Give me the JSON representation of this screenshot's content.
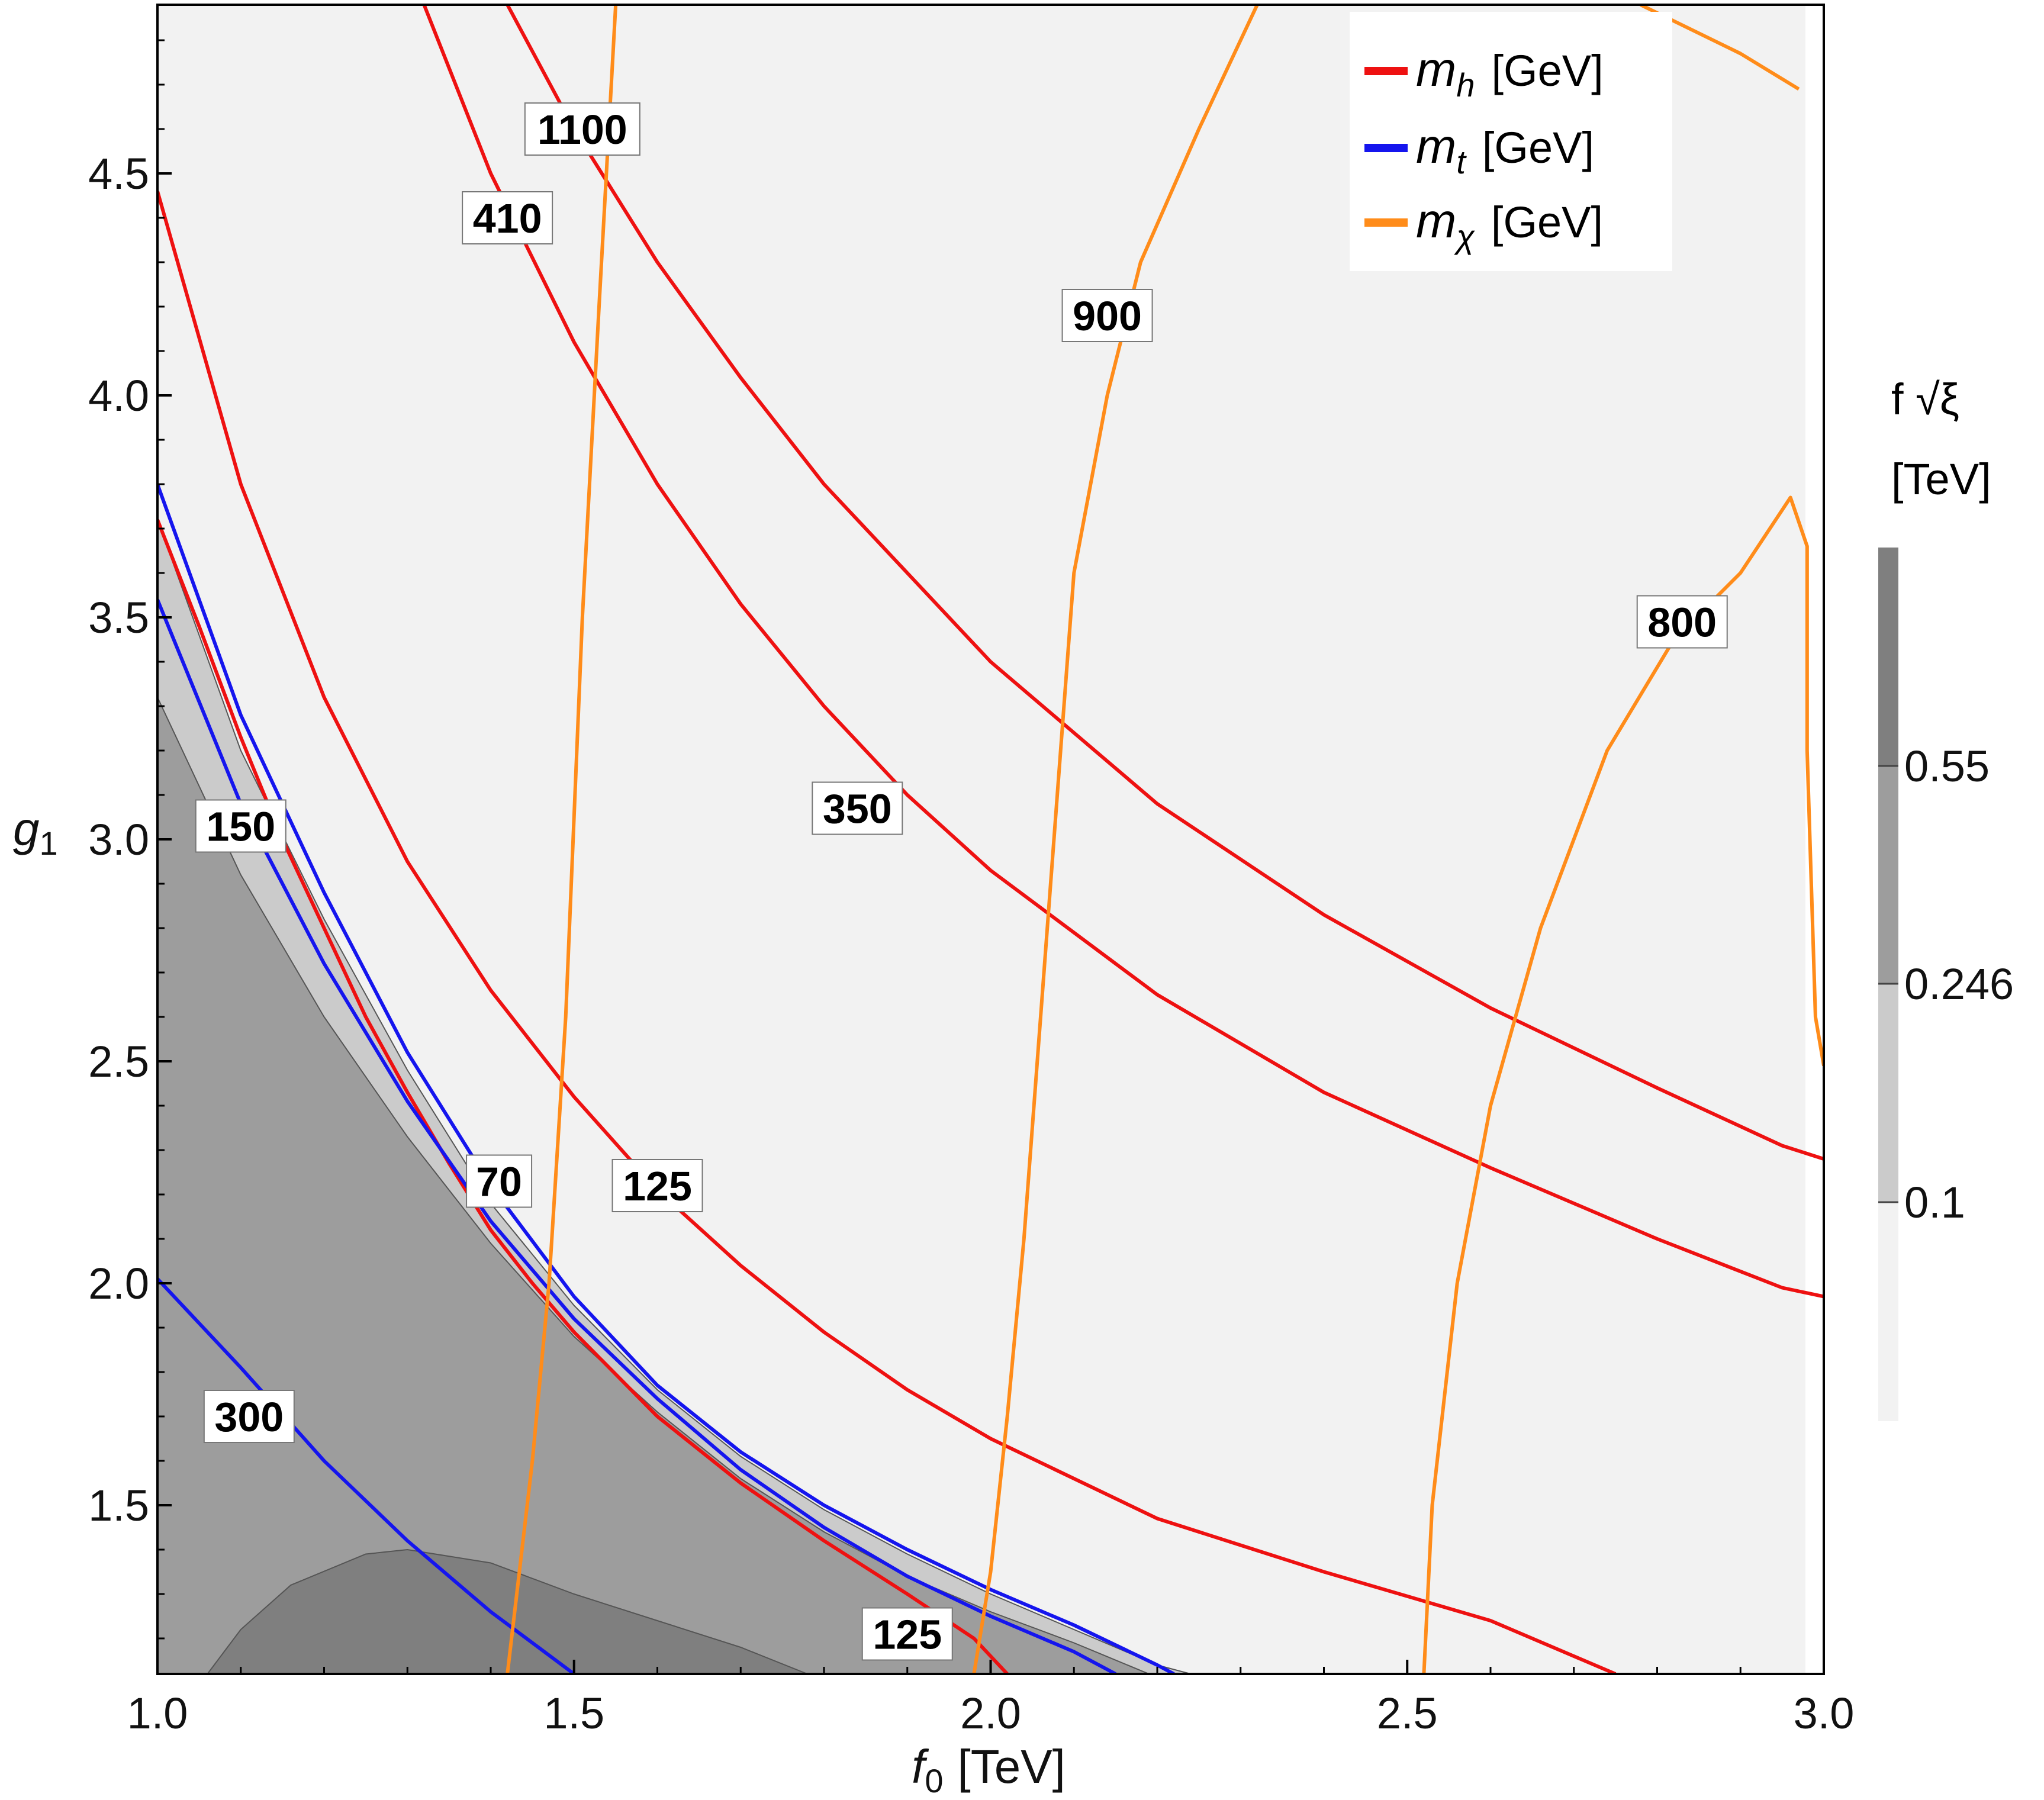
{
  "chart_data": {
    "type": "contour",
    "xlabel": {
      "main": "f",
      "sub": "0",
      "unit": "[TeV]"
    },
    "ylabel": {
      "main": "g",
      "sub": "1"
    },
    "xlim": [
      1.0,
      3.0
    ],
    "ylim": [
      1.12,
      4.88
    ],
    "xticks": [
      "1.0",
      "1.5",
      "2.0",
      "2.5",
      "3.0"
    ],
    "yticks": [
      "1.5",
      "2.0",
      "2.5",
      "3.0",
      "3.5",
      "4.0",
      "4.5"
    ],
    "grid": false,
    "legend_position": "top-right",
    "legend": [
      {
        "symbol": "m",
        "sub": "h",
        "unit": "[GeV]",
        "color": "#ee1111"
      },
      {
        "symbol": "m",
        "sub": "t",
        "unit": "[GeV]",
        "color": "#1515ee"
      },
      {
        "symbol": "m",
        "sub": "χ",
        "unit": "[GeV]",
        "color": "#ff8c1a"
      }
    ],
    "colorbar": {
      "title_line1": "f √ξ",
      "title_line2": "[TeV]",
      "ticks": [
        "0.55",
        "0.246",
        "0.1"
      ],
      "colors": [
        "#f2f2f2",
        "#cbcbcb",
        "#9d9d9d",
        "#7f7f7f"
      ]
    },
    "filled_regions": [
      {
        "level": "0.1",
        "color": "#cbcbcb",
        "boundary": [
          [
            1.0,
            3.72
          ],
          [
            1.1,
            3.2
          ],
          [
            1.2,
            2.82
          ],
          [
            1.3,
            2.48
          ],
          [
            1.4,
            2.18
          ],
          [
            1.5,
            1.95
          ],
          [
            1.6,
            1.76
          ],
          [
            1.7,
            1.61
          ],
          [
            1.8,
            1.49
          ],
          [
            1.9,
            1.39
          ],
          [
            2.0,
            1.3
          ],
          [
            2.1,
            1.22
          ],
          [
            2.2,
            1.14
          ],
          [
            2.24,
            1.12
          ]
        ]
      },
      {
        "level": "0.246",
        "color": "#9d9d9d",
        "boundary": [
          [
            1.0,
            3.32
          ],
          [
            1.1,
            2.92
          ],
          [
            1.2,
            2.6
          ],
          [
            1.3,
            2.33
          ],
          [
            1.4,
            2.09
          ],
          [
            1.5,
            1.88
          ],
          [
            1.6,
            1.71
          ],
          [
            1.7,
            1.56
          ],
          [
            1.8,
            1.44
          ],
          [
            1.9,
            1.34
          ],
          [
            2.0,
            1.26
          ],
          [
            2.1,
            1.19
          ],
          [
            2.19,
            1.12
          ]
        ]
      },
      {
        "level": "0.55",
        "color": "#7f7f7f",
        "boundary": [
          [
            1.06,
            1.12
          ],
          [
            1.1,
            1.22
          ],
          [
            1.16,
            1.32
          ],
          [
            1.25,
            1.39
          ],
          [
            1.3,
            1.4
          ],
          [
            1.4,
            1.37
          ],
          [
            1.5,
            1.3
          ],
          [
            1.6,
            1.24
          ],
          [
            1.7,
            1.18
          ],
          [
            1.78,
            1.12
          ]
        ]
      }
    ],
    "series": [
      {
        "kind": "m_h",
        "label": "70",
        "points": [
          [
            1.0,
            3.72
          ],
          [
            1.05,
            3.48
          ],
          [
            1.1,
            3.23
          ],
          [
            1.15,
            3.0
          ],
          [
            1.2,
            2.8
          ],
          [
            1.25,
            2.6
          ],
          [
            1.3,
            2.43
          ],
          [
            1.35,
            2.27
          ],
          [
            1.4,
            2.12
          ],
          [
            1.45,
            2.0
          ],
          [
            1.5,
            1.89
          ],
          [
            1.6,
            1.7
          ],
          [
            1.7,
            1.55
          ],
          [
            1.8,
            1.42
          ],
          [
            1.9,
            1.3
          ],
          [
            1.98,
            1.2
          ],
          [
            2.02,
            1.12
          ]
        ]
      },
      {
        "kind": "m_h",
        "label": "125",
        "points": [
          [
            1.0,
            4.46
          ],
          [
            1.1,
            3.8
          ],
          [
            1.2,
            3.32
          ],
          [
            1.3,
            2.95
          ],
          [
            1.4,
            2.66
          ],
          [
            1.5,
            2.42
          ],
          [
            1.6,
            2.21
          ],
          [
            1.7,
            2.04
          ],
          [
            1.8,
            1.89
          ],
          [
            1.9,
            1.76
          ],
          [
            2.0,
            1.65
          ],
          [
            2.2,
            1.47
          ],
          [
            2.4,
            1.35
          ],
          [
            2.6,
            1.24
          ],
          [
            2.75,
            1.12
          ]
        ]
      },
      {
        "kind": "m_h",
        "label": "350",
        "points": [
          [
            1.32,
            4.88
          ],
          [
            1.4,
            4.5
          ],
          [
            1.5,
            4.12
          ],
          [
            1.6,
            3.8
          ],
          [
            1.7,
            3.53
          ],
          [
            1.8,
            3.3
          ],
          [
            1.9,
            3.1
          ],
          [
            2.0,
            2.93
          ],
          [
            2.2,
            2.65
          ],
          [
            2.4,
            2.43
          ],
          [
            2.6,
            2.26
          ],
          [
            2.8,
            2.1
          ],
          [
            2.95,
            1.99
          ],
          [
            3.0,
            1.97
          ],
          [
            3.02,
            2.0
          ],
          [
            3.02,
            2.06
          ]
        ]
      },
      {
        "kind": "m_h",
        "label": "410",
        "points": [
          [
            1.42,
            4.88
          ],
          [
            1.5,
            4.6
          ],
          [
            1.6,
            4.3
          ],
          [
            1.7,
            4.04
          ],
          [
            1.8,
            3.8
          ],
          [
            1.9,
            3.6
          ],
          [
            2.0,
            3.4
          ],
          [
            2.2,
            3.08
          ],
          [
            2.4,
            2.83
          ],
          [
            2.6,
            2.62
          ],
          [
            2.8,
            2.44
          ],
          [
            2.95,
            2.31
          ],
          [
            3.0,
            2.28
          ],
          [
            3.02,
            2.3
          ],
          [
            3.02,
            2.39
          ]
        ]
      },
      {
        "kind": "m_t",
        "label": "70",
        "points": [
          [
            1.0,
            3.8
          ],
          [
            1.1,
            3.28
          ],
          [
            1.2,
            2.88
          ],
          [
            1.3,
            2.52
          ],
          [
            1.4,
            2.22
          ],
          [
            1.5,
            1.97
          ],
          [
            1.6,
            1.77
          ],
          [
            1.7,
            1.62
          ],
          [
            1.8,
            1.5
          ],
          [
            1.9,
            1.4
          ],
          [
            2.0,
            1.31
          ],
          [
            2.1,
            1.23
          ],
          [
            2.2,
            1.14
          ],
          [
            2.22,
            1.12
          ]
        ]
      },
      {
        "kind": "m_t",
        "label": "150",
        "points": [
          [
            1.0,
            3.54
          ],
          [
            1.1,
            3.08
          ],
          [
            1.2,
            2.72
          ],
          [
            1.3,
            2.41
          ],
          [
            1.4,
            2.14
          ],
          [
            1.5,
            1.92
          ],
          [
            1.6,
            1.74
          ],
          [
            1.7,
            1.58
          ],
          [
            1.8,
            1.45
          ],
          [
            1.9,
            1.34
          ],
          [
            2.0,
            1.25
          ],
          [
            2.1,
            1.17
          ],
          [
            2.15,
            1.12
          ]
        ]
      },
      {
        "kind": "m_t",
        "label": "300",
        "points": [
          [
            1.0,
            2.01
          ],
          [
            1.1,
            1.81
          ],
          [
            1.2,
            1.6
          ],
          [
            1.3,
            1.42
          ],
          [
            1.4,
            1.26
          ],
          [
            1.5,
            1.12
          ]
        ]
      },
      {
        "kind": "m_chi",
        "label": "1100",
        "points": [
          [
            1.42,
            1.12
          ],
          [
            1.45,
            1.6
          ],
          [
            1.47,
            2.0
          ],
          [
            1.49,
            2.6
          ],
          [
            1.51,
            3.5
          ],
          [
            1.53,
            4.2
          ],
          [
            1.55,
            4.88
          ]
        ]
      },
      {
        "kind": "m_chi",
        "label": "900",
        "points": [
          [
            1.98,
            1.12
          ],
          [
            2.0,
            1.35
          ],
          [
            2.02,
            1.7
          ],
          [
            2.04,
            2.1
          ],
          [
            2.06,
            2.6
          ],
          [
            2.08,
            3.1
          ],
          [
            2.1,
            3.6
          ],
          [
            2.14,
            4.0
          ],
          [
            2.18,
            4.3
          ],
          [
            2.25,
            4.6
          ],
          [
            2.32,
            4.88
          ]
        ]
      },
      {
        "kind": "m_chi",
        "label": "800",
        "points": [
          [
            2.52,
            1.12
          ],
          [
            2.53,
            1.5
          ],
          [
            2.56,
            2.0
          ],
          [
            2.6,
            2.4
          ],
          [
            2.66,
            2.8
          ],
          [
            2.74,
            3.2
          ],
          [
            2.82,
            3.45
          ],
          [
            2.9,
            3.6
          ],
          [
            2.96,
            3.77
          ],
          [
            2.98,
            3.66
          ],
          [
            2.98,
            3.2
          ],
          [
            2.99,
            2.6
          ],
          [
            3.0,
            2.49
          ]
        ]
      },
      {
        "kind": "m_chi",
        "label": "",
        "points": [
          [
            2.78,
            4.88
          ],
          [
            2.9,
            4.77
          ],
          [
            2.97,
            4.69
          ]
        ]
      }
    ],
    "contour_labels": [
      {
        "text": "1100",
        "x": 1.51,
        "y": 4.6
      },
      {
        "text": "410",
        "x": 1.42,
        "y": 4.4
      },
      {
        "text": "900",
        "x": 2.14,
        "y": 4.18
      },
      {
        "text": "800",
        "x": 2.83,
        "y": 3.49
      },
      {
        "text": "350",
        "x": 1.84,
        "y": 3.07
      },
      {
        "text": "150",
        "x": 1.1,
        "y": 3.03
      },
      {
        "text": "70",
        "x": 1.41,
        "y": 2.23
      },
      {
        "text": "125",
        "x": 1.6,
        "y": 2.22
      },
      {
        "text": "300",
        "x": 1.11,
        "y": 1.7
      },
      {
        "text": "125",
        "x": 1.9,
        "y": 1.21
      }
    ]
  }
}
